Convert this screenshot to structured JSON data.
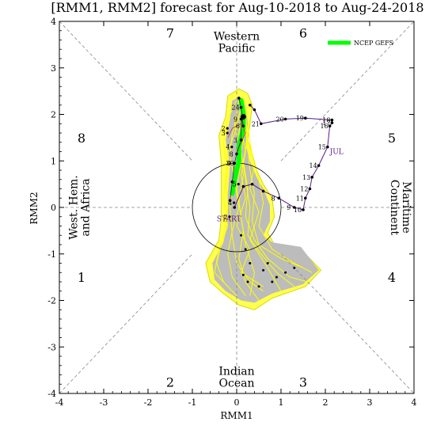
{
  "chart_data": {
    "type": "scatter",
    "title": "[RMM1, RMM2] forecast for Aug-10-2018 to Aug-24-2018",
    "xlabel": "RMM1",
    "ylabel": "RMM2",
    "xlim": [
      -4,
      4
    ],
    "ylim": [
      -4,
      4
    ],
    "x_ticks": [
      "-4",
      "-3",
      "-2",
      "-1",
      "0",
      "1",
      "2",
      "3",
      "4"
    ],
    "y_ticks": [
      "-4",
      "-3",
      "-2",
      "-1",
      "0",
      "1",
      "2",
      "3",
      "4"
    ],
    "phase_numbers": [
      {
        "label": "1",
        "x": -3.5,
        "y": -1.5
      },
      {
        "label": "2",
        "x": -1.5,
        "y": -3.75
      },
      {
        "label": "3",
        "x": 1.5,
        "y": -3.75
      },
      {
        "label": "4",
        "x": 3.5,
        "y": -1.5
      },
      {
        "label": "5",
        "x": 3.5,
        "y": 1.5
      },
      {
        "label": "6",
        "x": 1.5,
        "y": 3.75
      },
      {
        "label": "7",
        "x": -1.5,
        "y": 3.75
      },
      {
        "label": "8",
        "x": -3.5,
        "y": 1.5
      }
    ],
    "regions": {
      "top": [
        "Western",
        "Pacific"
      ],
      "bottom": [
        "Indian",
        "Ocean"
      ],
      "left": [
        "West. Hem.",
        "and Africa"
      ],
      "right": [
        "Maritime",
        "Continent"
      ]
    },
    "legend": {
      "label": "NCEP GEFS",
      "color": "#00ff00"
    },
    "observed_labels": {
      "month": "JUL",
      "start": "START"
    },
    "observed": {
      "color": "#5a1a8a",
      "points": [
        {
          "label": "",
          "x": -0.05,
          "y": 0.0
        },
        {
          "label": "",
          "x": 0.15,
          "y": 0.45
        },
        {
          "label": "",
          "x": 0.35,
          "y": 0.5
        },
        {
          "label": "",
          "x": 0.6,
          "y": 0.35
        },
        {
          "label": "8",
          "x": 0.95,
          "y": 0.2
        },
        {
          "label": "9",
          "x": 1.3,
          "y": 0.0
        },
        {
          "label": "10",
          "x": 1.5,
          "y": -0.05
        },
        {
          "label": "11",
          "x": 1.55,
          "y": 0.2
        },
        {
          "label": "12",
          "x": 1.65,
          "y": 0.4
        },
        {
          "label": "13",
          "x": 1.7,
          "y": 0.65
        },
        {
          "label": "14",
          "x": 1.85,
          "y": 0.9
        },
        {
          "label": "15",
          "x": 2.05,
          "y": 1.3
        },
        {
          "label": "16",
          "x": 2.1,
          "y": 1.75
        },
        {
          "label": "17",
          "x": 2.15,
          "y": 1.82
        },
        {
          "label": "18",
          "x": 2.15,
          "y": 1.88
        },
        {
          "label": "19",
          "x": 1.55,
          "y": 1.92
        },
        {
          "label": "20",
          "x": 1.1,
          "y": 1.9
        },
        {
          "label": "21",
          "x": 0.55,
          "y": 1.8
        },
        {
          "label": "",
          "x": 0.4,
          "y": 2.1
        },
        {
          "label": "",
          "x": 0.3,
          "y": 2.2
        }
      ]
    },
    "ensemble_mean": {
      "color": "#000000",
      "points": [
        {
          "label": "",
          "x": 0.05,
          "y": 2.35
        },
        {
          "label": "24",
          "x": 0.1,
          "y": 2.15
        },
        {
          "label": "6",
          "x": 0.15,
          "y": 1.75
        },
        {
          "label": "9",
          "x": 0.1,
          "y": 1.9
        },
        {
          "label": "3",
          "x": 0.1,
          "y": 1.45
        },
        {
          "label": "8",
          "x": 0.0,
          "y": 1.15
        },
        {
          "label": "0",
          "x": -0.05,
          "y": 0.95
        },
        {
          "label": "",
          "x": -0.1,
          "y": 0.55
        },
        {
          "label": "",
          "x": -0.15,
          "y": 0.15
        }
      ]
    },
    "big_dot": {
      "x": 0.15,
      "y": 1.95
    },
    "spread_day_labels": [
      {
        "label": "2",
        "x": -0.3,
        "y": 1.7
      },
      {
        "label": "3",
        "x": -0.3,
        "y": 1.6
      },
      {
        "label": "4",
        "x": -0.2,
        "y": 1.3
      },
      {
        "label": "30",
        "x": -0.15,
        "y": 0.95
      },
      {
        "label": "5",
        "x": -0.05,
        "y": 0.5
      },
      {
        "label": "4",
        "x": -0.15,
        "y": 0.1
      },
      {
        "label": "2",
        "x": -0.25,
        "y": -0.2
      }
    ]
  }
}
